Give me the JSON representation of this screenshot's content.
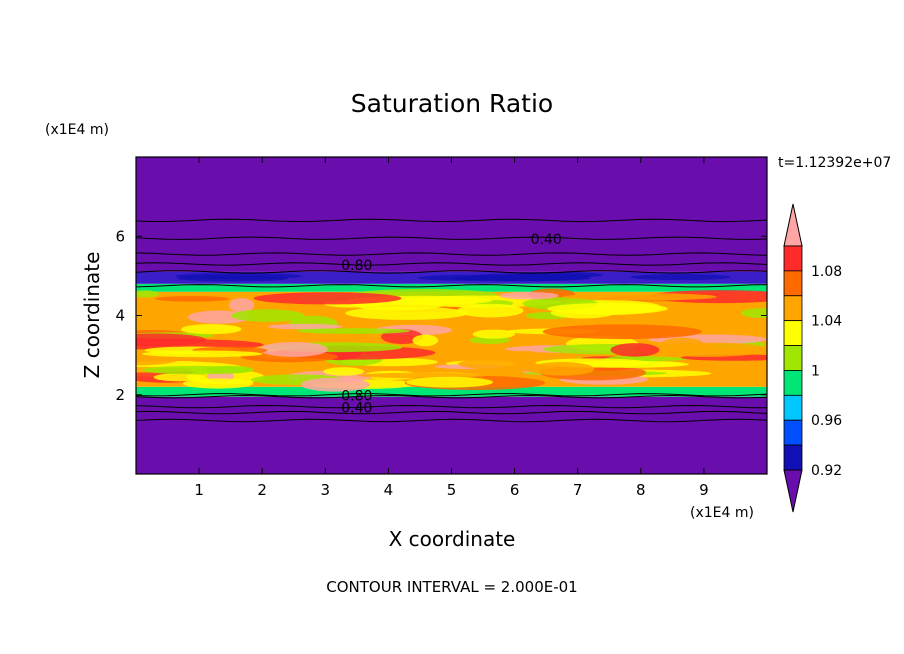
{
  "chart_data": {
    "type": "heatmap",
    "title": "Saturation Ratio",
    "xlabel": "X coordinate",
    "ylabel": "Z coordinate",
    "x_unit": "(x1E4 m)",
    "y_unit": "(x1E4 m)",
    "time_label": "t=1.12392e+07",
    "footer": "CONTOUR INTERVAL = 2.000E-01",
    "xlim": [
      0,
      10
    ],
    "ylim": [
      0,
      8
    ],
    "x_ticks": [
      "1",
      "2",
      "3",
      "4",
      "5",
      "6",
      "7",
      "8",
      "9"
    ],
    "y_ticks": [
      "2",
      "4",
      "6"
    ],
    "contour_labels": [
      {
        "text": "0.40",
        "x": 6.5,
        "z": 5.9
      },
      {
        "text": "0.80",
        "x": 3.5,
        "z": 5.25
      },
      {
        "text": "0.80",
        "x": 3.5,
        "z": 1.95
      },
      {
        "text": "0.40",
        "x": 3.5,
        "z": 1.65
      }
    ],
    "layers": [
      {
        "z0": 0.0,
        "z1": 1.95,
        "level": "dry"
      },
      {
        "z0": 1.95,
        "z1": 2.2,
        "level": "0.98"
      },
      {
        "z0": 2.2,
        "z1": 4.6,
        "level": "1.04"
      },
      {
        "z0": 4.6,
        "z1": 4.8,
        "level": "0.98"
      },
      {
        "z0": 4.8,
        "z1": 5.1,
        "level": "0.92"
      },
      {
        "z0": 5.1,
        "z1": 8.0,
        "level": "dry"
      }
    ],
    "colorbar": {
      "labels": [
        "1.08",
        "1.04",
        "1",
        "0.96",
        "0.92"
      ],
      "colors": [
        "#ffa5a5",
        "#ff2a2a",
        "#ff6a00",
        "#ffa500",
        "#ffff00",
        "#a0e600",
        "#00e676",
        "#00c8ff",
        "#0050ff",
        "#1010b4",
        "#6a0dad"
      ]
    },
    "colors": {
      "dry": "#6a0dad",
      "0.92": "#3c1ec8",
      "0.98": "#00e676",
      "1.04": "#ffa500"
    }
  }
}
